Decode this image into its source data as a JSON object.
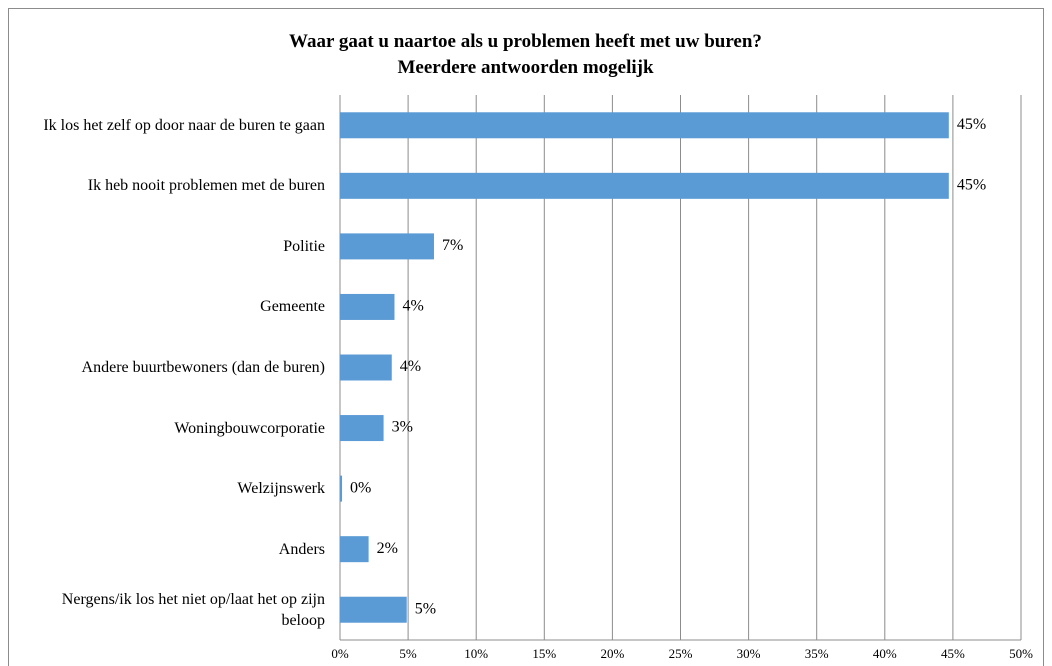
{
  "chart_data": {
    "type": "bar",
    "orientation": "horizontal",
    "title": "Waar gaat u naartoe als u problemen heeft met uw buren?",
    "subtitle": "Meerdere antwoorden mogelijk",
    "categories": [
      "Ik los het zelf op door naar de buren te gaan",
      "Ik heb nooit problemen met de buren",
      "Politie",
      "Gemeente",
      "Andere buurtbewoners (dan de buren)",
      "Woningbouwcorporatie",
      "Welzijnswerk",
      "Anders",
      "Nergens/ik los het niet op/laat het op zijn beloop"
    ],
    "values": [
      44.7,
      44.7,
      6.9,
      4.0,
      3.8,
      3.2,
      0.15,
      2.1,
      4.9
    ],
    "value_labels": [
      "45%",
      "45%",
      "7%",
      "4%",
      "4%",
      "3%",
      "0%",
      "2%",
      "5%"
    ],
    "color": "#5b9bd5",
    "xlim": [
      0,
      50
    ],
    "xticks": [
      {
        "value": 0,
        "label": "0%"
      },
      {
        "value": 5,
        "label": "5%"
      },
      {
        "value": 10,
        "label": "10%"
      },
      {
        "value": 15,
        "label": "15%"
      },
      {
        "value": 20,
        "label": "20%"
      },
      {
        "value": 25,
        "label": "25%"
      },
      {
        "value": 30,
        "label": "30%"
      },
      {
        "value": 35,
        "label": "35%"
      },
      {
        "value": 40,
        "label": "40%"
      },
      {
        "value": 45,
        "label": "45%"
      },
      {
        "value": 50,
        "label": "50%"
      }
    ],
    "grid": true
  }
}
